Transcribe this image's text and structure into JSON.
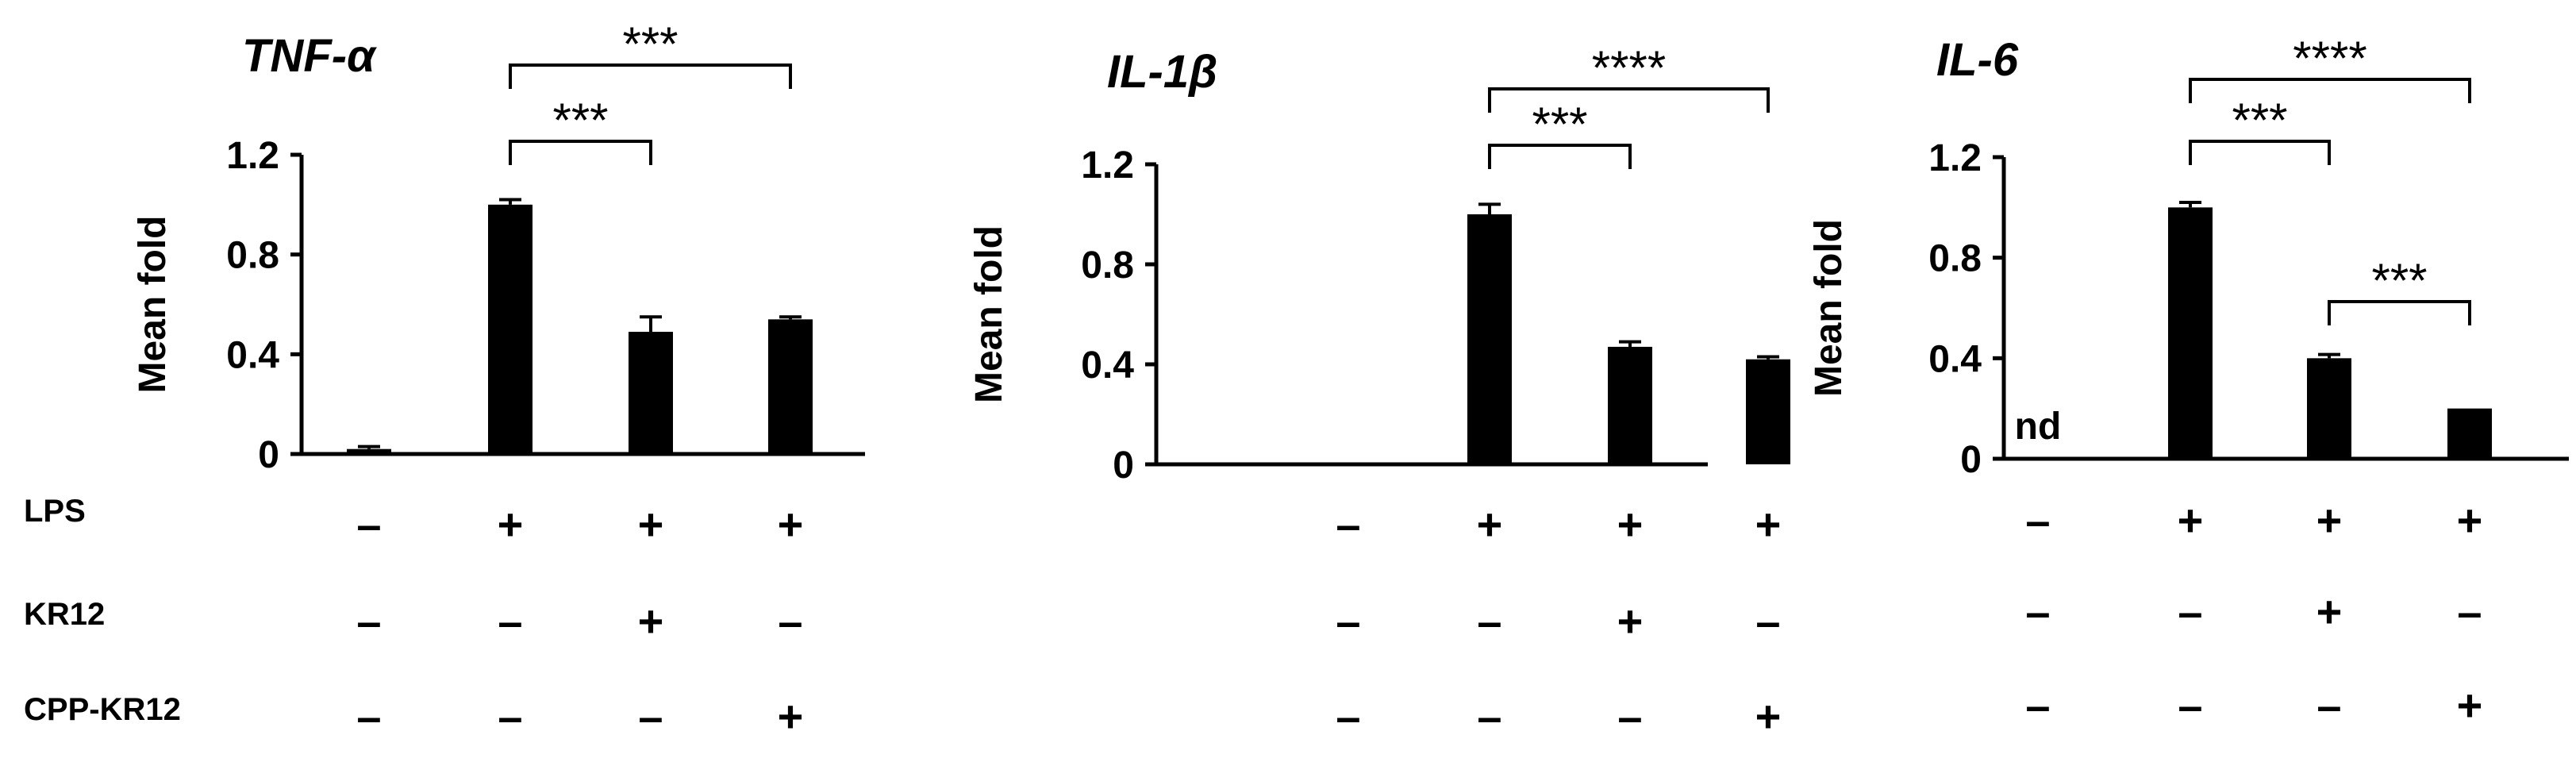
{
  "row_labels": [
    "LPS",
    "KR12",
    "CPP-KR12"
  ],
  "chart_data": [
    {
      "type": "bar",
      "title": "TNF-α",
      "ylabel": "Mean fold",
      "ylim": [
        0,
        1.2
      ],
      "yticks": [
        "0",
        "0.4",
        "0.8",
        "1.2"
      ],
      "categories": [
        "1",
        "2",
        "3",
        "4"
      ],
      "values": [
        0.02,
        1.0,
        0.49,
        0.54
      ],
      "errors": [
        0.01,
        0.02,
        0.06,
        0.01
      ],
      "na_labels": [
        "",
        "",
        "",
        ""
      ],
      "treatments": [
        [
          "–",
          "+",
          "+",
          "+"
        ],
        [
          "–",
          "–",
          "+",
          "–"
        ],
        [
          "–",
          "–",
          "–",
          "+"
        ]
      ],
      "significance": [
        {
          "from": 1,
          "to": 3,
          "label": "***",
          "level": 2
        },
        {
          "from": 1,
          "to": 2,
          "label": "***",
          "level": 1
        }
      ]
    },
    {
      "type": "bar",
      "title": "IL-1β",
      "ylabel": "Mean fold",
      "ylim": [
        0,
        1.2
      ],
      "yticks": [
        "0",
        "0.4",
        "0.8",
        "1.2"
      ],
      "categories": [
        "1",
        "2",
        "3",
        "4"
      ],
      "values": [
        0,
        1.0,
        0.47,
        0.42
      ],
      "errors": [
        0,
        0.04,
        0.02,
        0.01
      ],
      "na_labels": [
        "",
        "",
        "",
        ""
      ],
      "treatments": [
        [
          "–",
          "+",
          "+",
          "+"
        ],
        [
          "–",
          "–",
          "+",
          "–"
        ],
        [
          "–",
          "–",
          "–",
          "+"
        ]
      ],
      "significance": [
        {
          "from": 1,
          "to": 3,
          "label": "****",
          "level": 2
        },
        {
          "from": 1,
          "to": 2,
          "label": "***",
          "level": 1
        }
      ]
    },
    {
      "type": "bar",
      "title": "IL-6",
      "ylabel": "Mean fold",
      "ylim": [
        0,
        1.2
      ],
      "yticks": [
        "0",
        "0.4",
        "0.8",
        "1.2"
      ],
      "categories": [
        "1",
        "2",
        "3",
        "4"
      ],
      "values": [
        0,
        1.0,
        0.4,
        0.2
      ],
      "errors": [
        0,
        0.02,
        0.015,
        0
      ],
      "na_labels": [
        "nd",
        "",
        "",
        ""
      ],
      "treatments": [
        [
          "–",
          "+",
          "+",
          "+"
        ],
        [
          "–",
          "–",
          "+",
          "–"
        ],
        [
          "–",
          "–",
          "–",
          "+"
        ]
      ],
      "significance": [
        {
          "from": 1,
          "to": 3,
          "label": "****",
          "level": 2
        },
        {
          "from": 1,
          "to": 2,
          "label": "***",
          "level": 1
        },
        {
          "from": 2,
          "to": 3,
          "label": "***",
          "level": 0
        }
      ]
    }
  ]
}
